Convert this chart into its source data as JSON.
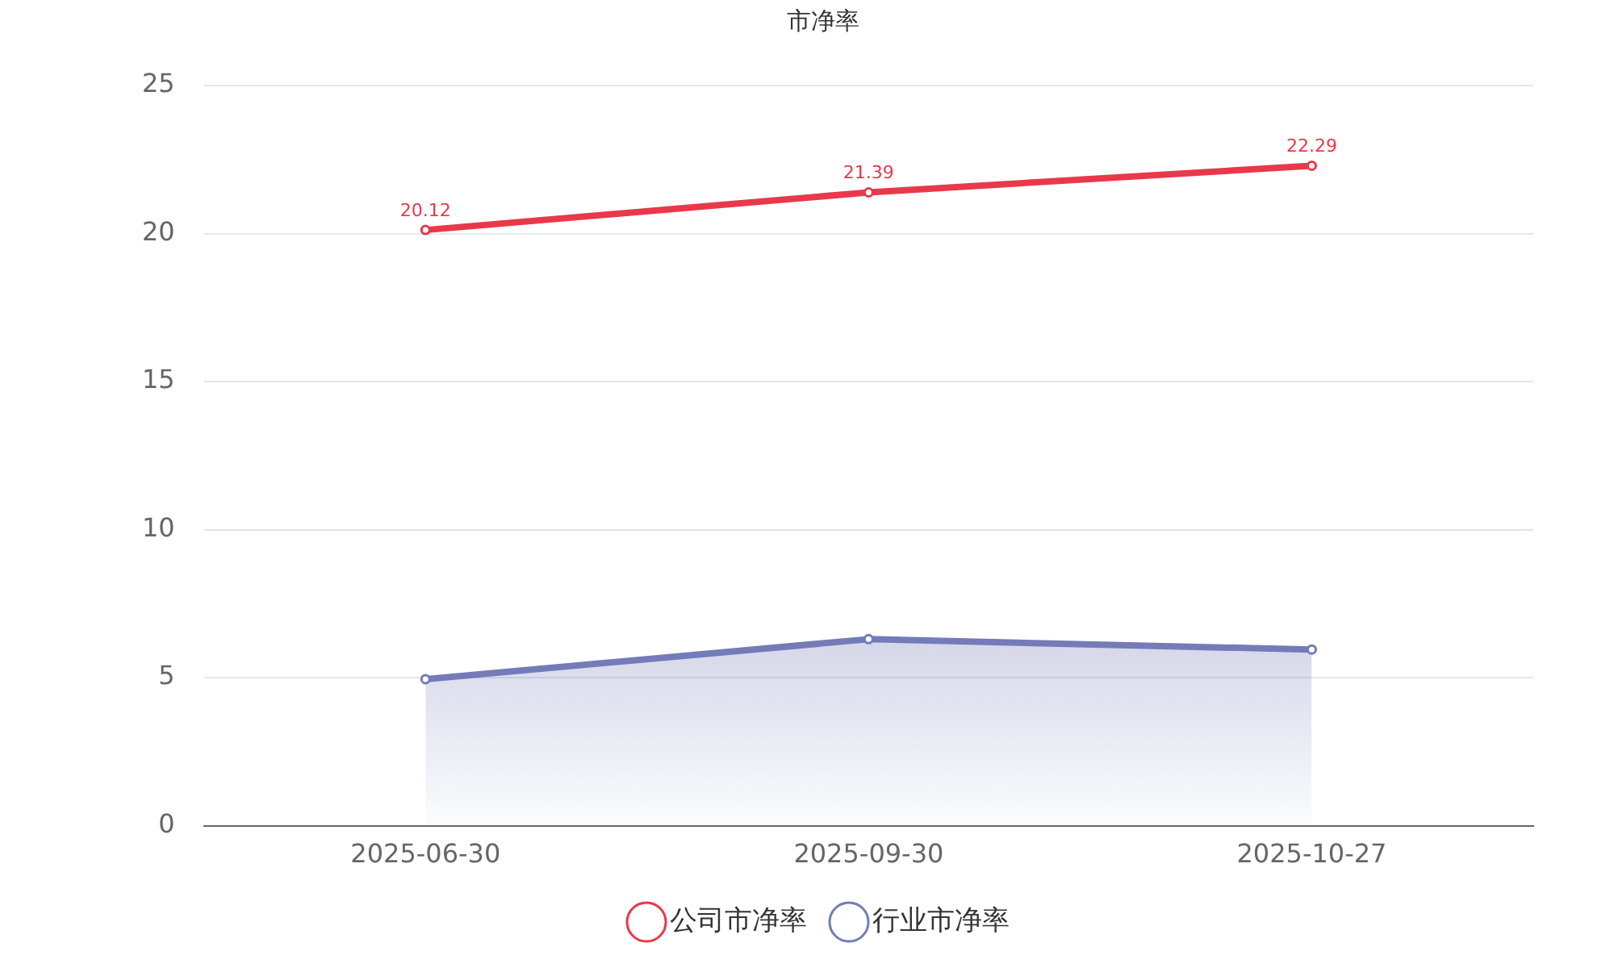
{
  "chart_data": {
    "type": "line",
    "title": "市净率",
    "categories": [
      "2025-06-30",
      "2025-09-30",
      "2025-10-27"
    ],
    "series": [
      {
        "name": "公司市净率",
        "type": "line",
        "color": "#e8394a",
        "values": [
          20.12,
          21.39,
          22.29
        ],
        "value_labels": [
          "20.12",
          "21.39",
          "22.29"
        ]
      },
      {
        "name": "行业市净率",
        "type": "area",
        "color": "#737cb8",
        "values": [
          4.95,
          6.3,
          5.95
        ]
      }
    ],
    "ylim": [
      0,
      25
    ],
    "yticks": [
      0,
      5,
      10,
      15,
      20,
      25
    ],
    "grid": "y",
    "legend": "bottom",
    "marker": "circle",
    "line_style": "solid"
  }
}
